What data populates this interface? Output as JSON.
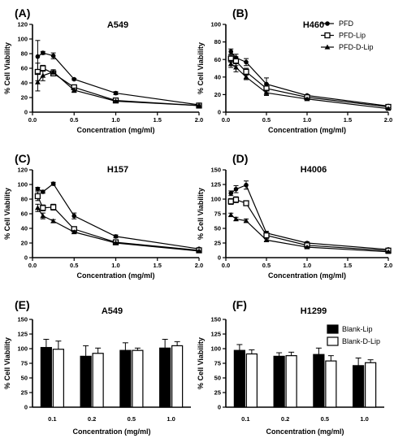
{
  "chart_data": [
    {
      "panel": "(A)",
      "title": "A549",
      "type": "line",
      "xlabel": "Concentration (mg/ml)",
      "ylabel": "% Cell Viability",
      "xlim": [
        0,
        2.0
      ],
      "ylim": [
        0,
        120
      ],
      "xticks": [
        0.0,
        0.5,
        1.0,
        1.5,
        2.0
      ],
      "yticks": [
        0,
        20,
        40,
        60,
        80,
        100,
        120
      ],
      "series": [
        {
          "name": "PFD",
          "marker": "circle",
          "x": [
            0.0625,
            0.125,
            0.25,
            0.5,
            1.0,
            2.0
          ],
          "y": [
            76,
            81,
            77,
            45,
            26,
            10
          ],
          "err": [
            22,
            2,
            4,
            1,
            2,
            2
          ]
        },
        {
          "name": "PFD-Lip",
          "marker": "square",
          "x": [
            0.0625,
            0.125,
            0.25,
            0.5,
            1.0,
            2.0
          ],
          "y": [
            55,
            60,
            53,
            34,
            16,
            9
          ],
          "err": [
            12,
            4,
            3,
            3,
            2,
            1
          ]
        },
        {
          "name": "PFD-D-Lip",
          "marker": "triangle",
          "x": [
            0.0625,
            0.125,
            0.25,
            0.5,
            1.0,
            2.0
          ],
          "y": [
            41,
            50,
            55,
            30,
            15,
            9
          ],
          "err": [
            12,
            7,
            3,
            3,
            1,
            1
          ]
        }
      ]
    },
    {
      "panel": "(B)",
      "title": "H460",
      "type": "line",
      "xlabel": "Concentration (mg/ml)",
      "ylabel": "% Cell Viability",
      "xlim": [
        0,
        2.0
      ],
      "ylim": [
        0,
        100
      ],
      "xticks": [
        0.0,
        0.5,
        1.0,
        1.5,
        2.0
      ],
      "yticks": [
        0,
        20,
        40,
        60,
        80,
        100
      ],
      "series": [
        {
          "name": "PFD",
          "marker": "circle",
          "x": [
            0.0625,
            0.125,
            0.25,
            0.5,
            1.0,
            2.0
          ],
          "y": [
            69,
            62,
            57,
            32,
            19,
            7
          ],
          "err": [
            3,
            4,
            4,
            7,
            1,
            1
          ]
        },
        {
          "name": "PFD-Lip",
          "marker": "square",
          "x": [
            0.0625,
            0.125,
            0.25,
            0.5,
            1.0,
            2.0
          ],
          "y": [
            61,
            58,
            46,
            27,
            17,
            6
          ],
          "err": [
            4,
            5,
            4,
            5,
            1,
            1
          ]
        },
        {
          "name": "PFD-D-Lip",
          "marker": "triangle",
          "x": [
            0.0625,
            0.125,
            0.25,
            0.5,
            1.0,
            2.0
          ],
          "y": [
            55,
            51,
            40,
            22,
            15,
            4
          ],
          "err": [
            4,
            5,
            3,
            3,
            1,
            1
          ]
        }
      ]
    },
    {
      "panel": "(C)",
      "title": "H157",
      "type": "line",
      "xlabel": "Concentration (mg/ml)",
      "ylabel": "% Cell Viability",
      "xlim": [
        0,
        2.0
      ],
      "ylim": [
        0,
        120
      ],
      "xticks": [
        0.0,
        0.5,
        1.0,
        1.5,
        2.0
      ],
      "yticks": [
        0,
        20,
        40,
        60,
        80,
        100,
        120
      ],
      "series": [
        {
          "name": "PFD",
          "marker": "circle",
          "x": [
            0.0625,
            0.125,
            0.25,
            0.5,
            1.0,
            2.0
          ],
          "y": [
            94,
            90,
            101,
            57,
            29,
            12
          ],
          "err": [
            2,
            2,
            2,
            4,
            2,
            1
          ]
        },
        {
          "name": "PFD-Lip",
          "marker": "square",
          "x": [
            0.0625,
            0.125,
            0.25,
            0.5,
            1.0,
            2.0
          ],
          "y": [
            84,
            68,
            69,
            39,
            21,
            10
          ],
          "err": [
            6,
            4,
            4,
            2,
            2,
            1
          ]
        },
        {
          "name": "PFD-D-Lip",
          "marker": "triangle",
          "x": [
            0.0625,
            0.125,
            0.25,
            0.5,
            1.0,
            2.0
          ],
          "y": [
            68,
            57,
            50,
            35,
            20,
            9
          ],
          "err": [
            5,
            4,
            2,
            2,
            1,
            1
          ]
        }
      ]
    },
    {
      "panel": "(D)",
      "title": "H4006",
      "type": "line",
      "xlabel": "Concentration (mg/ml)",
      "ylabel": "% Cell Viability",
      "xlim": [
        0,
        2.0
      ],
      "ylim": [
        0,
        150
      ],
      "xticks": [
        0.0,
        0.5,
        1.0,
        1.5,
        2.0
      ],
      "yticks": [
        0,
        25,
        50,
        75,
        100,
        125,
        150
      ],
      "series": [
        {
          "name": "PFD",
          "marker": "circle",
          "x": [
            0.0625,
            0.125,
            0.25,
            0.5,
            1.0,
            2.0
          ],
          "y": [
            110,
            117,
            124,
            42,
            25,
            14
          ],
          "err": [
            4,
            6,
            7,
            3,
            2,
            1
          ]
        },
        {
          "name": "PFD-Lip",
          "marker": "square",
          "x": [
            0.0625,
            0.125,
            0.25,
            0.5,
            1.0,
            2.0
          ],
          "y": [
            96,
            99,
            93,
            38,
            21,
            12
          ],
          "err": [
            5,
            5,
            4,
            3,
            2,
            1
          ]
        },
        {
          "name": "PFD-D-Lip",
          "marker": "triangle",
          "x": [
            0.0625,
            0.125,
            0.25,
            0.5,
            1.0,
            2.0
          ],
          "y": [
            73,
            66,
            63,
            30,
            18,
            10
          ],
          "err": [
            3,
            3,
            3,
            2,
            1,
            1
          ]
        }
      ]
    },
    {
      "panel": "(E)",
      "title": "A549",
      "type": "bar",
      "xlabel": "Concentration (mg/ml)",
      "ylabel": "% Cell Viability",
      "ylim": [
        0,
        150
      ],
      "yticks": [
        0,
        25,
        50,
        75,
        100,
        125,
        150
      ],
      "categories": [
        "0.1",
        "0.2",
        "0.5",
        "1.0"
      ],
      "series": [
        {
          "name": "Blank-Lip",
          "fill": "#000000",
          "values": [
            102,
            87,
            97,
            101
          ],
          "err": [
            14,
            18,
            13,
            15
          ]
        },
        {
          "name": "Blank-D-Lip",
          "fill": "#ffffff",
          "values": [
            99,
            92,
            97,
            105
          ],
          "err": [
            14,
            9,
            4,
            7
          ]
        }
      ]
    },
    {
      "panel": "(F)",
      "title": "H1299",
      "type": "bar",
      "xlabel": "Concentration (mg/ml)",
      "ylabel": "% Cell Viability",
      "ylim": [
        0,
        150
      ],
      "yticks": [
        0,
        25,
        50,
        75,
        100,
        125,
        150
      ],
      "categories": [
        "0.1",
        "0.2",
        "0.5",
        "1.0"
      ],
      "series": [
        {
          "name": "Blank-Lip",
          "fill": "#000000",
          "values": [
            97,
            87,
            90,
            71
          ],
          "err": [
            10,
            6,
            11,
            13
          ]
        },
        {
          "name": "Blank-D-Lip",
          "fill": "#ffffff",
          "values": [
            91,
            88,
            79,
            76
          ],
          "err": [
            7,
            6,
            9,
            5
          ]
        }
      ]
    }
  ],
  "legends": {
    "line": [
      {
        "label": "PFD",
        "marker": "circle"
      },
      {
        "label": "PFD-Lip",
        "marker": "square"
      },
      {
        "label": "PFD-D-Lip",
        "marker": "triangle"
      }
    ],
    "bar": [
      {
        "label": "Blank-Lip",
        "fill": "#000000"
      },
      {
        "label": "Blank-D-Lip",
        "fill": "#ffffff"
      }
    ]
  },
  "colors": {
    "ink": "#000000",
    "background": "#ffffff"
  }
}
